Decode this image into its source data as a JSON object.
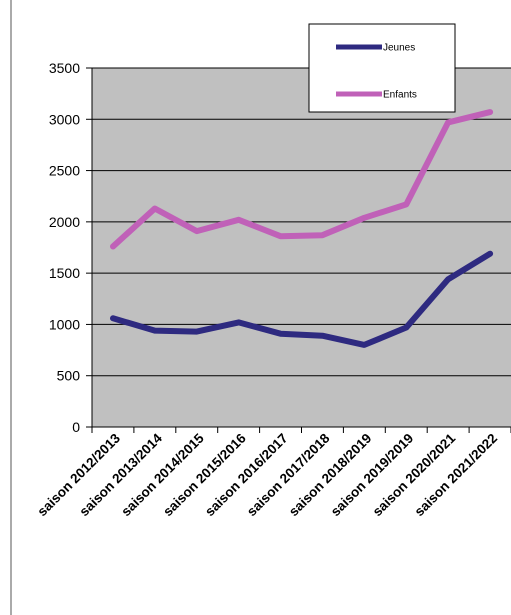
{
  "chart_data": {
    "type": "line",
    "title": "",
    "xlabel": "",
    "ylabel": "",
    "categories": [
      "saison 2012/2013",
      "saison 2013/2014",
      "saison 2014/2015",
      "saison 2015/2016",
      "saison 2016/2017",
      "saison 2017/2018",
      "saison 2018/2019",
      "saison 2019/2019",
      "saison 2020/2021",
      "saison 2021/2022"
    ],
    "series": [
      {
        "name": "Jeunes",
        "color": "#2e2a80",
        "values": [
          1060,
          940,
          930,
          1020,
          910,
          890,
          800,
          970,
          1440,
          1690
        ]
      },
      {
        "name": "Enfants",
        "color": "#c061b8",
        "values": [
          1760,
          2130,
          1910,
          2020,
          1860,
          1870,
          2040,
          2170,
          2970,
          3070
        ]
      }
    ],
    "ylim": [
      0,
      3500
    ],
    "y_ticks": [
      "0",
      "500",
      "1000",
      "1500",
      "2000",
      "2500",
      "3000",
      "3500"
    ],
    "grid": true,
    "plot_background": "#c0c0c0",
    "legend_position": "top-right"
  }
}
